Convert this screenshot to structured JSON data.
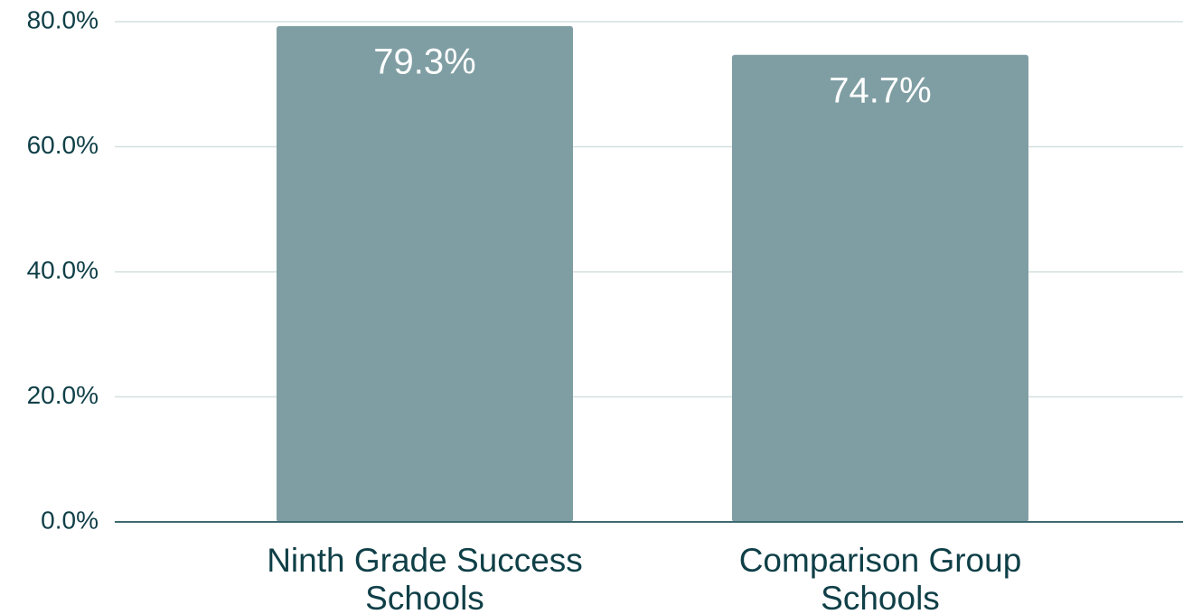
{
  "chart_data": {
    "type": "bar",
    "categories": [
      "Ninth Grade Success Schools",
      "Comparison Group Schools"
    ],
    "values": [
      79.3,
      74.7
    ],
    "value_labels": [
      "79.3%",
      "74.7%"
    ],
    "color": "#7f9ea3",
    "ylim": [
      0,
      80
    ],
    "yticks": [
      {
        "value": 0,
        "label": "0.0%"
      },
      {
        "value": 20,
        "label": "20.0%"
      },
      {
        "value": 40,
        "label": "40.0%"
      },
      {
        "value": 60,
        "label": "60.0%"
      },
      {
        "value": 80,
        "label": "80.0%"
      }
    ],
    "grid": true
  }
}
